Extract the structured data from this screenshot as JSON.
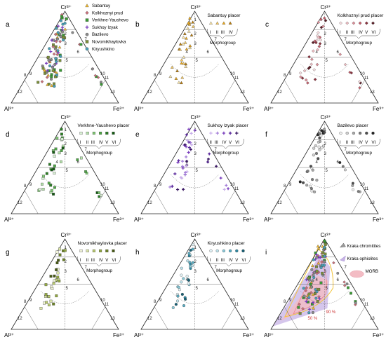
{
  "apex_labels": {
    "top": "Cr³⁺",
    "left": "Al³⁺",
    "right": "Fe³⁺"
  },
  "field_numbers": [
    "1",
    "2",
    "3",
    "4",
    "5",
    "6",
    "7",
    "8",
    "9",
    "10",
    "11",
    "12",
    "13"
  ],
  "legend": [
    {
      "label": "Sabantuy",
      "color": "#f2b92a",
      "marker": "triangle"
    },
    {
      "label": "Kolkhoznyi prud",
      "color": "#c9707a",
      "marker": "diamond"
    },
    {
      "label": "Verkhne-Yaushevo",
      "color": "#3a9a34",
      "marker": "square"
    },
    {
      "label": "Sukhoy Izyak",
      "color": "#7a3fbd",
      "marker": "plus"
    },
    {
      "label": "Bazilevo",
      "color": "#8a8a8a",
      "marker": "circle"
    },
    {
      "label": "Novomikhaylovka",
      "color": "#7b8f3a",
      "marker": "square"
    },
    {
      "label": "Kiryushkino",
      "color": "#4a9fb5",
      "marker": "circle"
    }
  ],
  "morphogroup_label": "Morphogroup",
  "panels": [
    {
      "letter": "a",
      "title": "",
      "romans": []
    },
    {
      "letter": "b",
      "title": "Sabantuy placer",
      "romans": [
        "I",
        "II",
        "III",
        "IV"
      ],
      "shades": [
        "#fbe6a8",
        "#f5c860",
        "#eaa91f",
        "#b97d0d"
      ],
      "marker": "triangle",
      "color": "#f2b92a"
    },
    {
      "letter": "c",
      "title": "Kolkhoznyi prud placer",
      "romans": [
        "I",
        "II",
        "III",
        "IV",
        "V",
        "VI"
      ],
      "shades": [
        "#f7dde0",
        "#eebcc2",
        "#dd8f99",
        "#c4606d",
        "#8c3440",
        "#5a1c25"
      ],
      "marker": "diamond",
      "color": "#c9707a"
    },
    {
      "letter": "d",
      "title": "Verkhne-Yaushevo placer",
      "romans": [
        "I",
        "II",
        "III",
        "IV",
        "V",
        "VI"
      ],
      "shades": [
        "#d8efd3",
        "#b2dea8",
        "#7ec772",
        "#4ea545",
        "#2c7d26",
        "#155a14"
      ],
      "marker": "square",
      "color": "#3a9a34"
    },
    {
      "letter": "e",
      "title": "Sukhoy Izyak placer",
      "romans": [
        "II",
        "III",
        "IV",
        "V",
        "VI"
      ],
      "shades": [
        "#c9b0ea",
        "#a47ed8",
        "#7a3fbd",
        "#57259a",
        "#35125f"
      ],
      "marker": "plus",
      "color": "#7a3fbd"
    },
    {
      "letter": "f",
      "title": "Bazilevo placer",
      "romans": [
        "I",
        "II",
        "III",
        "IV",
        "V",
        "VI"
      ],
      "shades": [
        "#eeeeee",
        "#cfcfcf",
        "#a8a8a8",
        "#7c7c7c",
        "#4f4f4f",
        "#262626"
      ],
      "marker": "circle",
      "color": "#8a8a8a"
    },
    {
      "letter": "g",
      "title": "Novomikhaylovka placer",
      "romans": [
        "I",
        "II",
        "III",
        "IV",
        "V",
        "VI"
      ],
      "shades": [
        "#eef1d6",
        "#d8e2a7",
        "#b7c86e",
        "#93a843",
        "#6c8228",
        "#485a16"
      ],
      "marker": "square",
      "color": "#7b8f3a"
    },
    {
      "letter": "h",
      "title": "Kiryushkino placer",
      "romans": [
        "I",
        "II",
        "III",
        "IV",
        "V",
        "VI"
      ],
      "shades": [
        "#e2f2f6",
        "#bde2eb",
        "#8bcad9",
        "#59acc2",
        "#2f8aa3",
        "#175f74"
      ],
      "marker": "circle",
      "color": "#4a9fb5"
    },
    {
      "letter": "i",
      "title": "",
      "romans": []
    }
  ],
  "overlay_legend": [
    "Kraka chromitites",
    "Kraka ophiolites",
    "MORB"
  ],
  "contour_labels": [
    "90 %",
    "50 %"
  ]
}
